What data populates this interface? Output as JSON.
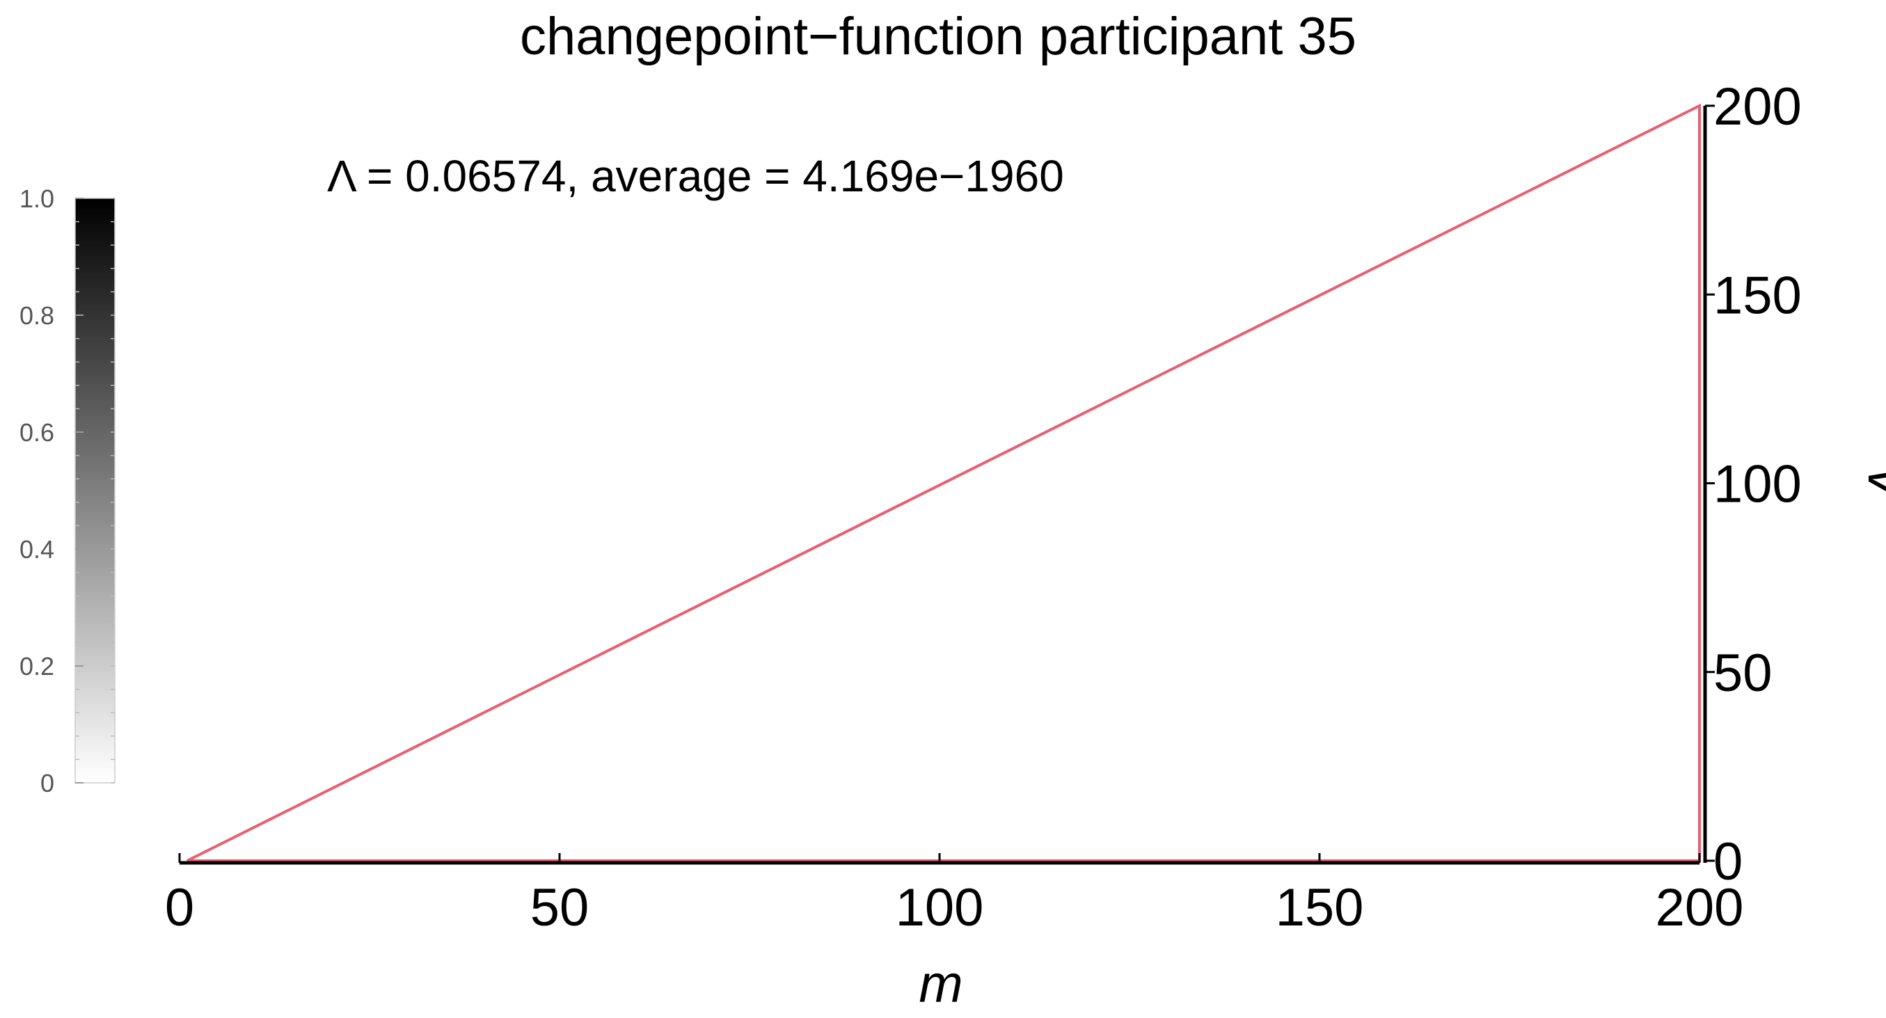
{
  "chart_data": {
    "type": "heatmap",
    "title": "changepoint−function participant 35",
    "annotation": "Λ = 0.06574,   average = 4.169e−1960",
    "xlabel": "m",
    "ylabel": "v",
    "xlim": [
      0,
      200
    ],
    "ylim": [
      0,
      200
    ],
    "x_ticks": [
      "0",
      "50",
      "100",
      "150",
      "200"
    ],
    "y_ticks": [
      "0",
      "50",
      "100",
      "150",
      "200"
    ],
    "y_axis_position": "right",
    "colorbar": {
      "range": [
        0,
        1
      ],
      "ticks": [
        "0",
        "0.2",
        "0.4",
        "0.6",
        "0.8",
        "1.0"
      ],
      "colormap": "white-to-black",
      "placement": "left"
    },
    "outline_color": "#e8606f",
    "outline_region": {
      "description_points": [
        [
          1,
          0
        ],
        [
          200,
          200
        ],
        [
          200,
          0
        ]
      ]
    }
  }
}
